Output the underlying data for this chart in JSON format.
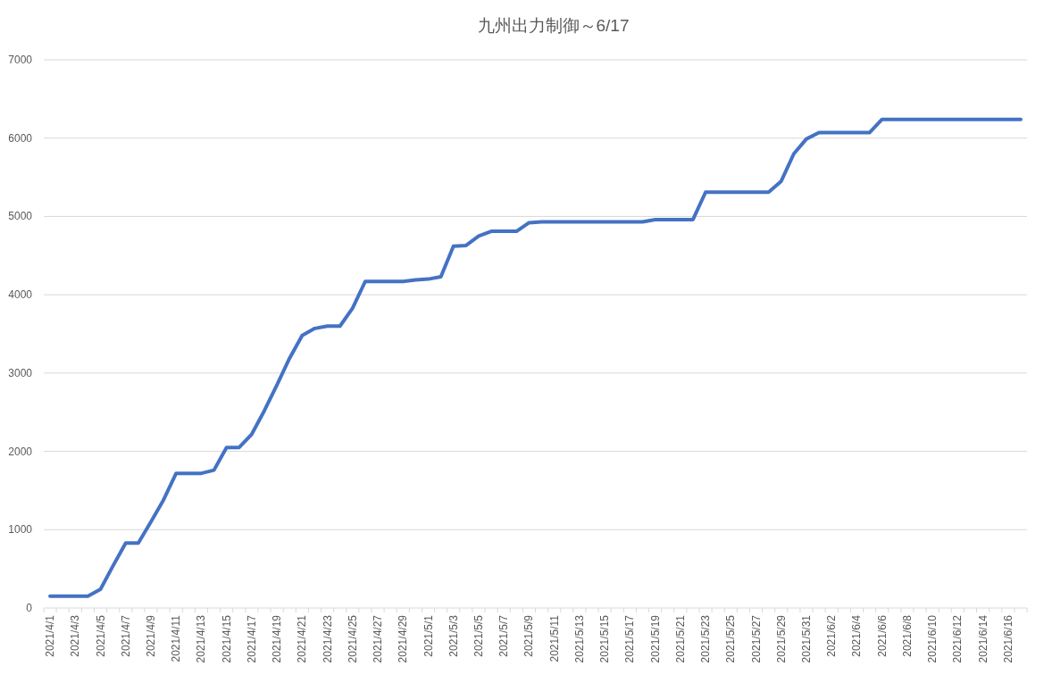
{
  "chart_data": {
    "type": "line",
    "title": "九州出力制御～6/17",
    "categories": [
      "2021/4/1",
      null,
      "2021/4/3",
      null,
      "2021/4/5",
      null,
      "2021/4/7",
      null,
      "2021/4/9",
      null,
      "2021/4/11",
      null,
      "2021/4/13",
      null,
      "2021/4/15",
      null,
      "2021/4/17",
      null,
      "2021/4/19",
      null,
      "2021/4/21",
      null,
      "2021/4/23",
      null,
      "2021/4/25",
      null,
      "2021/4/27",
      null,
      "2021/4/29",
      null,
      "2021/5/1",
      null,
      "2021/5/3",
      null,
      "2021/5/5",
      null,
      "2021/5/7",
      null,
      "2021/5/9",
      null,
      "2021/5/11",
      null,
      "2021/5/13",
      null,
      "2021/5/15",
      null,
      "2021/5/17",
      null,
      "2021/5/19",
      null,
      "2021/5/21",
      null,
      "2021/5/23",
      null,
      "2021/5/25",
      null,
      "2021/5/27",
      null,
      "2021/5/29",
      null,
      "2021/5/31",
      null,
      "2021/6/2",
      null,
      "2021/6/4",
      null,
      "2021/6/6",
      null,
      "2021/6/8",
      null,
      "2021/6/10",
      null,
      "2021/6/12",
      null,
      "2021/6/14",
      null,
      "2021/6/16",
      null
    ],
    "series": [
      {
        "color": "#4472c4",
        "values": [
          150,
          150,
          150,
          150,
          240,
          540,
          830,
          830,
          1100,
          1380,
          1720,
          1720,
          1720,
          1760,
          2050,
          2050,
          2220,
          2520,
          2850,
          3190,
          3480,
          3570,
          3600,
          3600,
          3830,
          4170,
          4170,
          4170,
          4170,
          4190,
          4200,
          4230,
          4620,
          4630,
          4750,
          4810,
          4810,
          4810,
          4920,
          4930,
          4930,
          4930,
          4930,
          4930,
          4930,
          4930,
          4930,
          4930,
          4960,
          4960,
          4960,
          4960,
          5310,
          5310,
          5310,
          5310,
          5310,
          5310,
          5450,
          5800,
          5990,
          6070,
          6070,
          6070,
          6070,
          6070,
          6240,
          6240,
          6240,
          6240,
          6240,
          6240,
          6240,
          6240,
          6240,
          6240,
          6240,
          6240
        ]
      }
    ],
    "ylim": [
      0,
      7000
    ],
    "yticks": [
      0,
      1000,
      2000,
      3000,
      4000,
      5000,
      6000,
      7000
    ],
    "grid": "y",
    "marker": "none",
    "line_style": "solid"
  }
}
